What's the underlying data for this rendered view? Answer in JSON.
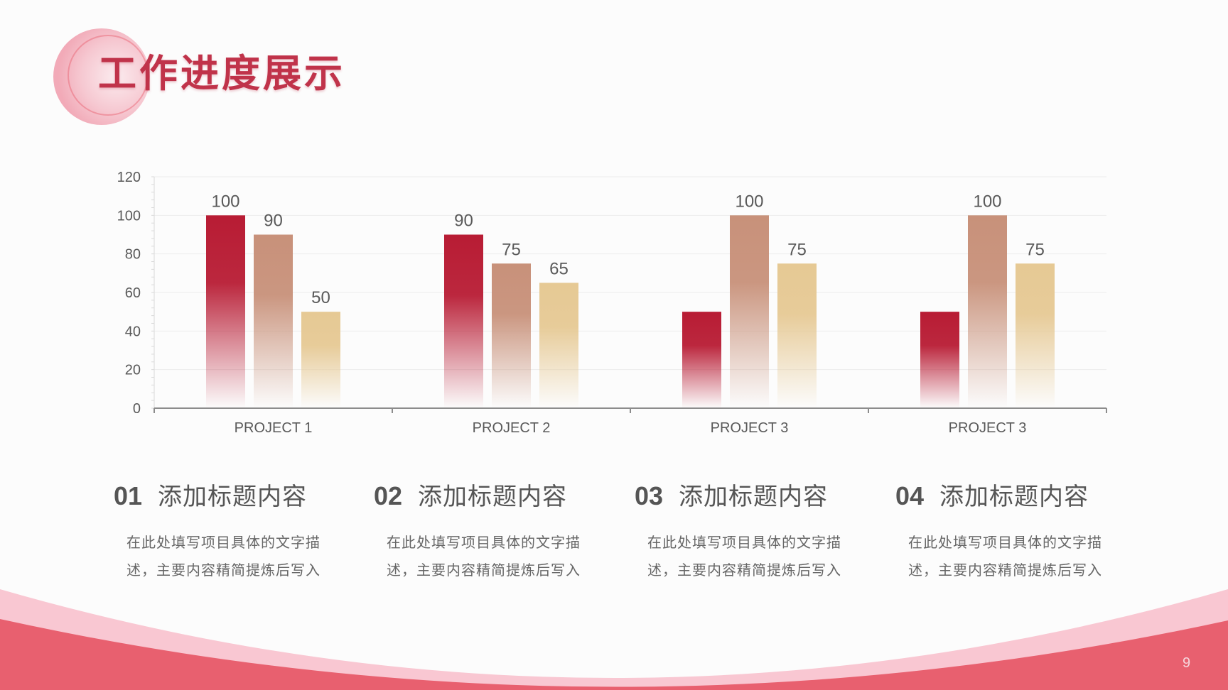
{
  "title": "工作进度展示",
  "page_number": "9",
  "colors": {
    "title": "#c0334a",
    "accent": "#e8606f",
    "accent_light": "#f8c6d0",
    "series": [
      "#b81c34",
      "#c8917a",
      "#e6c994"
    ]
  },
  "chart_data": {
    "type": "bar",
    "categories": [
      "PROJECT 1",
      "PROJECT 2",
      "PROJECT 3",
      "PROJECT 3"
    ],
    "series": [
      {
        "values": [
          100,
          90,
          50,
          50
        ],
        "labels": [
          true,
          true,
          false,
          false
        ]
      },
      {
        "values": [
          90,
          75,
          100,
          100
        ],
        "labels": [
          true,
          true,
          true,
          true
        ]
      },
      {
        "values": [
          50,
          65,
          75,
          75
        ],
        "labels": [
          true,
          true,
          true,
          true
        ]
      }
    ],
    "ylim": [
      0,
      120
    ],
    "yticks": [
      0,
      20,
      40,
      60,
      80,
      100,
      120
    ],
    "grid": true,
    "legend": "none",
    "xlabel": "",
    "ylabel": ""
  },
  "items": [
    {
      "num": "01",
      "title": "添加标题内容",
      "desc": "在此处填写项目具体的文字描述，主要内容精简提炼后写入"
    },
    {
      "num": "02",
      "title": "添加标题内容",
      "desc": "在此处填写项目具体的文字描述，主要内容精简提炼后写入"
    },
    {
      "num": "03",
      "title": "添加标题内容",
      "desc": "在此处填写项目具体的文字描述，主要内容精简提炼后写入"
    },
    {
      "num": "04",
      "title": "添加标题内容",
      "desc": "在此处填写项目具体的文字描述，主要内容精简提炼后写入"
    }
  ]
}
